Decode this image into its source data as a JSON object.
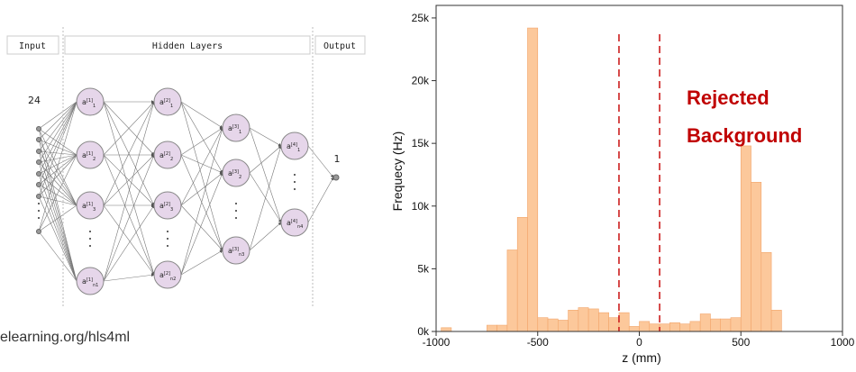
{
  "diagram": {
    "headers": {
      "input": "Input",
      "hidden": "Hidden Layers",
      "output": "Output"
    },
    "input_count": "24",
    "output_count": "1",
    "layer1": {
      "nodes": [
        "1",
        "2",
        "3",
        "n1"
      ],
      "sup": "[1]"
    },
    "layer2": {
      "nodes": [
        "1",
        "2",
        "3",
        "n2"
      ],
      "sup": "[2]"
    },
    "layer3": {
      "nodes": [
        "1",
        "2",
        "n3"
      ],
      "sup": "[3]"
    },
    "layer4": {
      "nodes": [
        "1",
        "n4"
      ],
      "sup": "[4]"
    },
    "node_letter": "a",
    "colors": {
      "node_fill": "#e6d6ea",
      "node_stroke": "#888888",
      "edge": "#666666"
    }
  },
  "footer": {
    "url": "elearning.org/hls4ml"
  },
  "chart_data": {
    "type": "bar",
    "title": "",
    "xlabel": "z (mm)",
    "ylabel": "Frequecy (Hz)",
    "xlim": [
      -1000,
      1000
    ],
    "ylim": [
      0,
      26000
    ],
    "xticks": [
      -1000,
      -500,
      0,
      500,
      1000
    ],
    "xtick_labels": [
      "-1000",
      "-500",
      "0",
      "500",
      "1000"
    ],
    "yticks": [
      0,
      5000,
      10000,
      15000,
      20000,
      25000
    ],
    "ytick_labels": [
      "0k",
      "5k",
      "10k",
      "15k",
      "20k",
      "25k"
    ],
    "bin_width": 50,
    "bin_starts": [
      -975,
      -750,
      -700,
      -650,
      -600,
      -550,
      -500,
      -450,
      -400,
      -350,
      -300,
      -250,
      -200,
      -150,
      -100,
      -50,
      0,
      50,
      100,
      150,
      200,
      250,
      300,
      350,
      400,
      450,
      500,
      550,
      600,
      650,
      700
    ],
    "values": [
      300,
      500,
      500,
      6500,
      9100,
      24200,
      1100,
      1000,
      900,
      1700,
      1900,
      1800,
      1500,
      1100,
      1500,
      400,
      800,
      600,
      600,
      700,
      600,
      800,
      1400,
      1000,
      1000,
      1100,
      14800,
      11900,
      6300,
      1700,
      0
    ],
    "annotation": {
      "line1": "Rejected",
      "line2": "Background"
    },
    "cut_lines": [
      -100,
      100
    ],
    "colors": {
      "bar_fill": "#fcc89b",
      "bar_stroke": "#f2a56a",
      "cut_line": "#cc1f1f",
      "annotation": "#c00000"
    },
    "grid": false
  }
}
